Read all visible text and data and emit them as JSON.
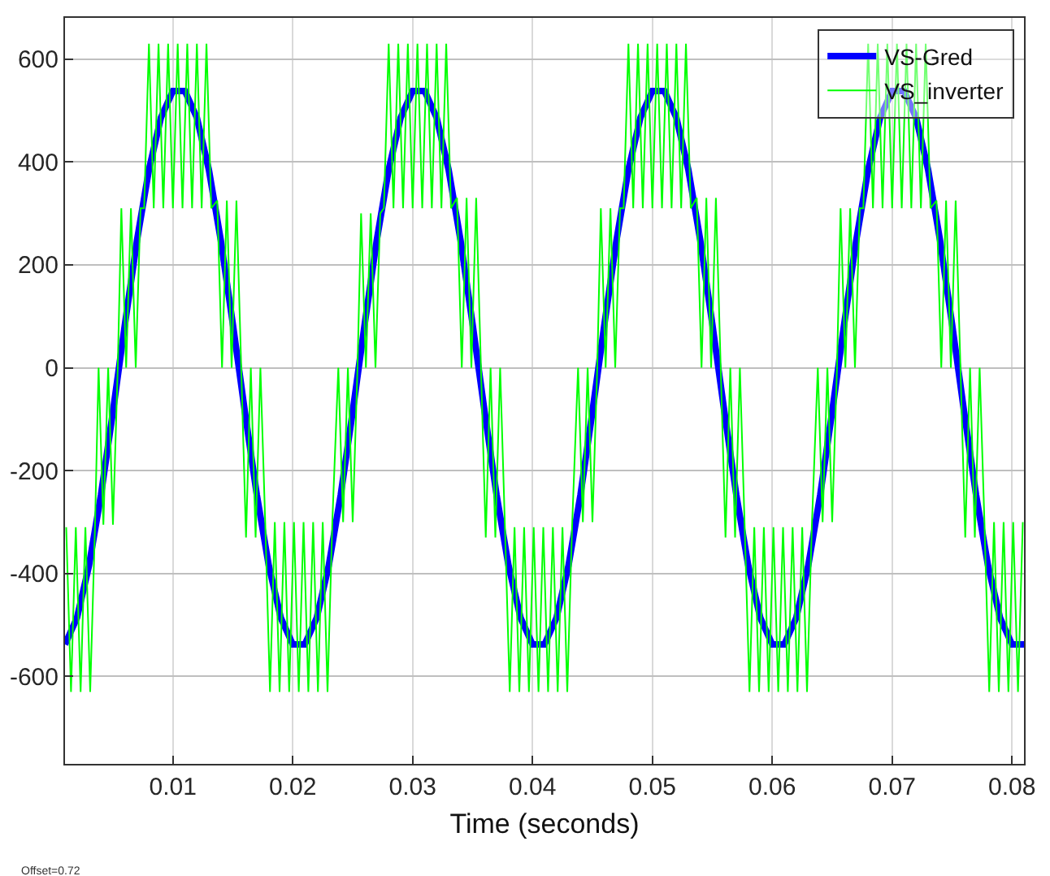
{
  "chart_data": {
    "type": "line",
    "xlabel": "Time (seconds)",
    "annotations": [
      "Offset=0.72"
    ],
    "xlim": [
      0.001,
      0.081
    ],
    "xticks": [
      0.01,
      0.02,
      0.03,
      0.04,
      0.05,
      0.06,
      0.07,
      0.08
    ],
    "ylim": [
      -770,
      680
    ],
    "yticks": [
      -600,
      -400,
      -200,
      0,
      200,
      400,
      600
    ],
    "grid": true,
    "legend": "top right",
    "marker": "none",
    "line_style": "solid",
    "series": [
      {
        "name": "VS-Gred",
        "color": "#0000ff",
        "x": [
          0.001,
          0.002,
          0.003,
          0.004,
          0.005,
          0.006,
          0.007,
          0.008,
          0.009,
          0.01,
          0.011,
          0.012,
          0.013,
          0.014,
          0.015,
          0.016,
          0.017,
          0.018,
          0.019,
          0.02,
          0.021,
          0.022,
          0.023,
          0.024,
          0.025,
          0.026,
          0.027,
          0.028,
          0.029,
          0.03,
          0.031,
          0.032,
          0.033,
          0.034,
          0.035,
          0.036,
          0.037,
          0.038,
          0.039,
          0.04,
          0.041,
          0.042,
          0.043,
          0.044,
          0.045,
          0.046,
          0.047,
          0.048,
          0.049,
          0.05,
          0.051,
          0.052,
          0.053,
          0.054,
          0.055,
          0.056,
          0.057,
          0.058,
          0.059,
          0.06,
          0.061,
          0.062,
          0.063,
          0.064,
          0.065,
          0.066,
          0.067,
          0.068,
          0.069,
          0.07,
          0.071,
          0.072,
          0.073,
          0.074,
          0.075,
          0.076,
          0.077,
          0.078,
          0.079,
          0.08,
          0.081
        ],
        "values": [
          -538,
          -486,
          -385,
          -247,
          -85,
          85,
          247,
          385,
          486,
          538,
          538,
          486,
          385,
          247,
          85,
          -85,
          -247,
          -385,
          -486,
          -538,
          -538,
          -486,
          -385,
          -247,
          -85,
          85,
          247,
          385,
          486,
          538,
          538,
          486,
          385,
          247,
          85,
          -85,
          -247,
          -385,
          -486,
          -538,
          -538,
          -486,
          -385,
          -247,
          -85,
          85,
          247,
          385,
          486,
          538,
          538,
          486,
          385,
          247,
          85,
          -85,
          -247,
          -385,
          -486,
          -538,
          -538,
          -486,
          -385,
          -247,
          -85,
          85,
          247,
          385,
          486,
          538,
          538,
          486,
          385,
          247,
          85,
          -85,
          -247,
          -385,
          -486,
          -538,
          -538
        ]
      },
      {
        "name": "VS_inverter",
        "color": "#00ff00",
        "x": [
          0.0011,
          0.0015,
          0.0019,
          0.0023,
          0.0027,
          0.0031,
          0.0035,
          0.0038,
          0.0042,
          0.0046,
          0.005,
          0.0054,
          0.0057,
          0.0061,
          0.0065,
          0.0069,
          0.0073,
          0.0076,
          0.008,
          0.0084,
          0.0088,
          0.0092,
          0.0096,
          0.01,
          0.0104,
          0.0108,
          0.0112,
          0.0116,
          0.012,
          0.0124,
          0.0128,
          0.0132,
          0.0137,
          0.0141,
          0.0145,
          0.0149,
          0.0153,
          0.0157,
          0.0161,
          0.0165,
          0.0169,
          0.0173,
          0.0177,
          0.0181,
          0.0185,
          0.0189,
          0.0193,
          0.0197,
          0.0201,
          0.0205,
          0.0209,
          0.0213,
          0.0217,
          0.0221,
          0.0225,
          0.0229,
          0.0233,
          0.0238,
          0.0242,
          0.0246,
          0.025,
          0.0254,
          0.0257,
          0.0261,
          0.0265,
          0.0269,
          0.0273,
          0.0276,
          0.028,
          0.0284,
          0.0288,
          0.0292,
          0.0296,
          0.03,
          0.0304,
          0.0308,
          0.0312,
          0.0316,
          0.032,
          0.0324,
          0.0328,
          0.0332,
          0.0337,
          0.0341,
          0.0345,
          0.0349,
          0.0353,
          0.0357,
          0.0361,
          0.0365,
          0.0369,
          0.0373,
          0.0377,
          0.0381,
          0.0385,
          0.0389,
          0.0393,
          0.0397,
          0.0401,
          0.0405,
          0.0409,
          0.0413,
          0.0417,
          0.0421,
          0.0425,
          0.0429,
          0.0433,
          0.0438,
          0.0442,
          0.0446,
          0.045,
          0.0454,
          0.0457,
          0.0461,
          0.0465,
          0.0469,
          0.0473,
          0.0476,
          0.048,
          0.0484,
          0.0488,
          0.0492,
          0.0496,
          0.05,
          0.0504,
          0.0508,
          0.0512,
          0.0516,
          0.052,
          0.0524,
          0.0528,
          0.0532,
          0.0537,
          0.0541,
          0.0545,
          0.0549,
          0.0553,
          0.0557,
          0.0561,
          0.0565,
          0.0569,
          0.0573,
          0.0577,
          0.0581,
          0.0585,
          0.0589,
          0.0593,
          0.0597,
          0.0601,
          0.0605,
          0.0609,
          0.0613,
          0.0617,
          0.0621,
          0.0625,
          0.0629,
          0.0633,
          0.0638,
          0.0642,
          0.0646,
          0.065,
          0.0654,
          0.0657,
          0.0661,
          0.0665,
          0.0669,
          0.0673,
          0.0676,
          0.068,
          0.0684,
          0.0688,
          0.0692,
          0.0696,
          0.07,
          0.0704,
          0.0708,
          0.0712,
          0.0716,
          0.072,
          0.0724,
          0.0728,
          0.0732,
          0.0737,
          0.0741,
          0.0745,
          0.0749,
          0.0753,
          0.0757,
          0.0761,
          0.0765,
          0.0769,
          0.0773,
          0.0777,
          0.0781,
          0.0785,
          0.0789,
          0.0793,
          0.0797,
          0.0801,
          0.0805,
          0.0809
        ],
        "values": [
          -310,
          -630,
          -310,
          -630,
          -310,
          -630,
          -310,
          0,
          -305,
          0,
          -305,
          0,
          310,
          0,
          310,
          0,
          310,
          310,
          630,
          310,
          630,
          310,
          630,
          310,
          630,
          310,
          630,
          310,
          630,
          310,
          630,
          310,
          325,
          0,
          325,
          0,
          325,
          0,
          -330,
          0,
          -330,
          0,
          -300,
          -630,
          -300,
          -630,
          -300,
          -630,
          -300,
          -630,
          -300,
          -630,
          -300,
          -630,
          -300,
          -630,
          -300,
          0,
          -300,
          0,
          -300,
          0,
          300,
          0,
          300,
          0,
          300,
          310,
          630,
          310,
          630,
          310,
          630,
          310,
          630,
          310,
          630,
          310,
          630,
          310,
          630,
          310,
          330,
          0,
          330,
          0,
          330,
          0,
          -330,
          0,
          -330,
          0,
          -310,
          -630,
          -310,
          -630,
          -310,
          -630,
          -310,
          -630,
          -310,
          -630,
          -310,
          -630,
          -310,
          -630,
          -310,
          0,
          -300,
          0,
          -300,
          0,
          310,
          0,
          310,
          0,
          310,
          310,
          630,
          310,
          630,
          310,
          630,
          310,
          630,
          310,
          630,
          310,
          630,
          310,
          630,
          310,
          330,
          0,
          330,
          0,
          330,
          0,
          -330,
          0,
          -330,
          0,
          -310,
          -630,
          -310,
          -630,
          -310,
          -630,
          -310,
          -630,
          -310,
          -630,
          -310,
          -630,
          -310,
          -630,
          -310,
          0,
          -300,
          0,
          -300,
          0,
          310,
          0,
          310,
          0,
          310,
          310,
          630,
          310,
          630,
          310,
          630,
          310,
          630,
          310,
          630,
          310,
          630,
          310,
          630,
          310,
          325,
          0,
          325,
          0,
          325,
          0,
          -330,
          0,
          -330,
          0,
          -300,
          -630,
          -300,
          -630,
          -300,
          -630,
          -300,
          -630,
          -300
        ]
      }
    ]
  }
}
